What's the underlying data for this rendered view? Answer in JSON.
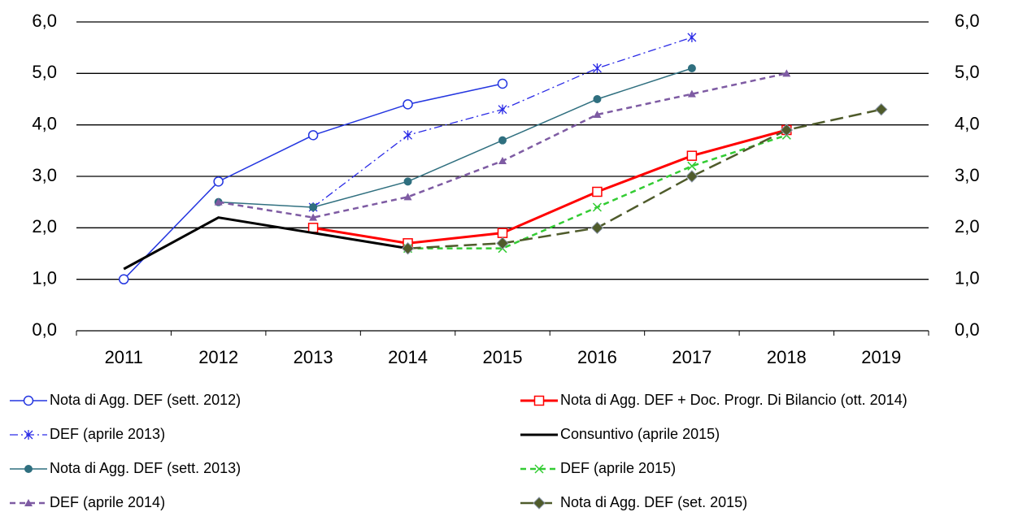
{
  "chart_data": {
    "type": "line",
    "categories": [
      "2011",
      "2012",
      "2013",
      "2014",
      "2015",
      "2016",
      "2017",
      "2018",
      "2019"
    ],
    "ylim": [
      0,
      6
    ],
    "yticks": [
      {
        "value": 0,
        "label": "0,0"
      },
      {
        "value": 1,
        "label": "1,0"
      },
      {
        "value": 2,
        "label": "2,0"
      },
      {
        "value": 3,
        "label": "3,0"
      },
      {
        "value": 4,
        "label": "4,0"
      },
      {
        "value": 5,
        "label": "5,0"
      },
      {
        "value": 6,
        "label": "6,0"
      }
    ],
    "y2lim": [
      0,
      6
    ],
    "y2ticks": [
      {
        "value": 0,
        "label": "0,0"
      },
      {
        "value": 1,
        "label": "1,0"
      },
      {
        "value": 2,
        "label": "2,0"
      },
      {
        "value": 3,
        "label": "3,0"
      },
      {
        "value": 4,
        "label": "4,0"
      },
      {
        "value": 5,
        "label": "5,0"
      },
      {
        "value": 6,
        "label": "6,0"
      }
    ],
    "grid": true,
    "legend": "bottom",
    "series": [
      {
        "name": "Nota di Agg. DEF (sett. 2012)",
        "color": "#2436e0",
        "dash": "solid",
        "marker": "open-circle",
        "values": [
          1.0,
          2.9,
          3.8,
          4.4,
          4.8,
          null,
          null,
          null,
          null
        ]
      },
      {
        "name": "DEF (aprile 2013)",
        "color": "#2a2ae6",
        "dash": "dashdot",
        "marker": "asterisk",
        "values": [
          null,
          null,
          2.4,
          3.8,
          4.3,
          5.1,
          5.7,
          null,
          null
        ]
      },
      {
        "name": "Nota di Agg. DEF (sett. 2013)",
        "color": "#2f6f7f",
        "dash": "solid",
        "marker": "circle",
        "values": [
          null,
          2.5,
          2.4,
          2.9,
          3.7,
          4.5,
          5.1,
          null,
          null
        ]
      },
      {
        "name": "DEF (aprile 2014)",
        "color": "#7e5ba3",
        "dash": "dash",
        "marker": "triangle",
        "values": [
          null,
          2.5,
          2.2,
          2.6,
          3.3,
          4.2,
          4.6,
          5.0,
          null
        ]
      },
      {
        "name": "Nota di Agg. DEF + Doc. Progr. Di Bilancio (ott. 2014)",
        "color": "#ff0000",
        "dash": "solid",
        "marker": "open-square",
        "values": [
          null,
          null,
          2.0,
          1.7,
          1.9,
          2.7,
          3.4,
          3.9,
          null
        ]
      },
      {
        "name": "Consuntivo (aprile 2015)",
        "color": "#000000",
        "dash": "solid",
        "marker": "none",
        "values": [
          1.2,
          2.2,
          1.9,
          1.6,
          null,
          null,
          null,
          null,
          null
        ]
      },
      {
        "name": "DEF (aprile 2015)",
        "color": "#33cc33",
        "dash": "dash",
        "marker": "x",
        "values": [
          null,
          null,
          null,
          1.6,
          1.6,
          2.4,
          3.2,
          3.8,
          null
        ]
      },
      {
        "name": "Nota di Agg. DEF (set. 2015)",
        "color": "#4f5b2b",
        "dash": "longdash",
        "marker": "diamond",
        "values": [
          null,
          null,
          null,
          1.6,
          1.7,
          2.0,
          3.0,
          3.9,
          4.3
        ]
      }
    ]
  }
}
